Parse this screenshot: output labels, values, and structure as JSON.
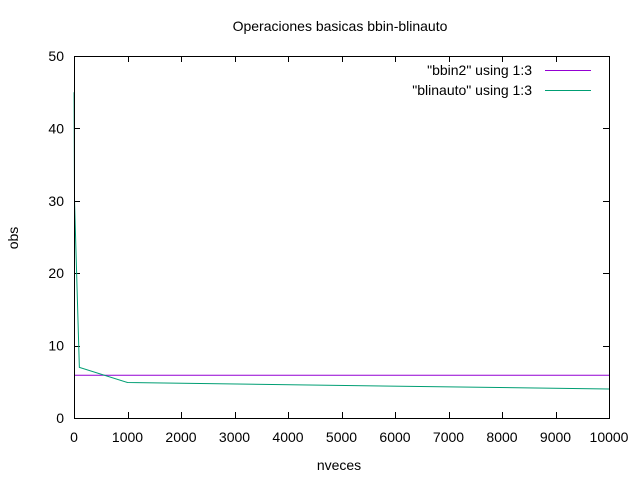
{
  "chart_data": {
    "type": "line",
    "title": "Operaciones basicas bbin-blinauto",
    "xlabel": "nveces",
    "ylabel": "obs",
    "xlim": [
      0,
      10000
    ],
    "ylim": [
      0,
      50
    ],
    "xticks": [
      0,
      1000,
      2000,
      3000,
      4000,
      5000,
      6000,
      7000,
      8000,
      9000,
      10000
    ],
    "yticks": [
      0,
      10,
      20,
      30,
      40,
      50
    ],
    "grid": false,
    "legend_position": "top-right",
    "series": [
      {
        "name": "\"bbin2\" using 1:3",
        "color": "#9400d3",
        "x": [
          0,
          10000
        ],
        "y": [
          5.9,
          5.9
        ]
      },
      {
        "name": "\"blinauto\" using 1:3",
        "color": "#009e73",
        "x": [
          1,
          10,
          100,
          1000,
          10000
        ],
        "y": [
          45,
          30,
          7,
          4.9,
          4
        ]
      }
    ]
  }
}
